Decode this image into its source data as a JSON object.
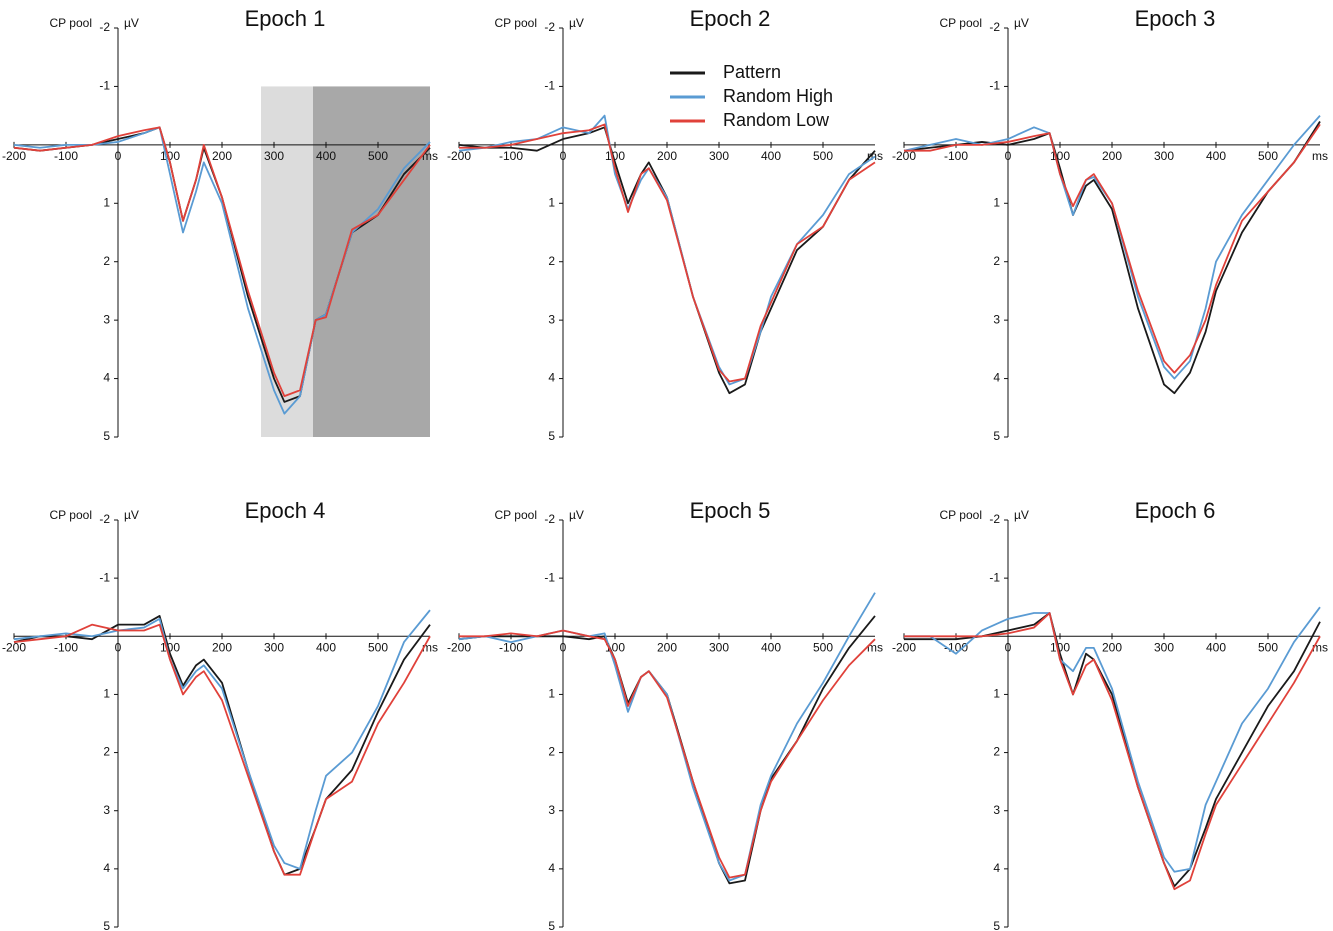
{
  "chart_data": [
    {
      "type": "line",
      "title": "Epoch 1",
      "y_label": "CP pool",
      "y_unit": "µV",
      "x_unit": "ms",
      "x": [
        -200,
        -150,
        -100,
        -50,
        0,
        50,
        80,
        100,
        125,
        150,
        165,
        200,
        250,
        300,
        320,
        350,
        380,
        400,
        450,
        500,
        550,
        600
      ],
      "xlim": [
        -200,
        600
      ],
      "ylim": [
        5,
        -2
      ],
      "xticks": [
        -200,
        -100,
        0,
        100,
        200,
        300,
        400,
        500
      ],
      "yticks": [
        -2,
        -1,
        1,
        2,
        3,
        4,
        5
      ],
      "shaded_regions": [
        {
          "xlim": [
            275,
            375
          ],
          "ylim": [
            -1,
            5
          ],
          "color": "#dcdcdc"
        },
        {
          "xlim": [
            375,
            600
          ],
          "ylim": [
            -1,
            5
          ],
          "color": "#a8a8a8"
        }
      ],
      "series": [
        {
          "color": "#1a1a1a",
          "values": [
            0.05,
            0.1,
            0.05,
            0.0,
            -0.1,
            -0.2,
            -0.3,
            0.3,
            1.3,
            0.6,
            0.05,
            0.9,
            2.6,
            4.0,
            4.4,
            4.3,
            3.0,
            2.9,
            1.5,
            1.2,
            0.5,
            0.05
          ]
        },
        {
          "color": "#5a9bd3",
          "values": [
            0.0,
            0.05,
            0.0,
            0.0,
            -0.05,
            -0.2,
            -0.3,
            0.5,
            1.5,
            0.8,
            0.3,
            1.0,
            2.8,
            4.2,
            4.6,
            4.3,
            3.0,
            2.9,
            1.5,
            1.1,
            0.4,
            -0.05
          ]
        },
        {
          "color": "#e0413a",
          "values": [
            0.05,
            0.1,
            0.05,
            0.0,
            -0.15,
            -0.25,
            -0.3,
            0.3,
            1.3,
            0.6,
            0.0,
            0.9,
            2.5,
            3.9,
            4.3,
            4.2,
            3.0,
            2.95,
            1.45,
            1.2,
            0.6,
            0.0
          ]
        }
      ]
    },
    {
      "type": "line",
      "title": "Epoch 2",
      "y_label": "CP pool",
      "y_unit": "µV",
      "x_unit": "ms",
      "x": [
        -200,
        -150,
        -100,
        -50,
        0,
        50,
        80,
        100,
        125,
        150,
        165,
        200,
        250,
        300,
        320,
        350,
        380,
        400,
        450,
        500,
        550,
        600
      ],
      "xlim": [
        -200,
        600
      ],
      "ylim": [
        5,
        -2
      ],
      "xticks": [
        -200,
        -100,
        0,
        100,
        200,
        300,
        400,
        500
      ],
      "yticks": [
        -2,
        -1,
        1,
        2,
        3,
        4,
        5
      ],
      "series": [
        {
          "name": "Pattern",
          "color": "#1a1a1a",
          "values": [
            0.0,
            0.05,
            0.05,
            0.1,
            -0.1,
            -0.2,
            -0.3,
            0.3,
            1.0,
            0.5,
            0.3,
            0.9,
            2.6,
            3.9,
            4.25,
            4.1,
            3.2,
            2.8,
            1.8,
            1.4,
            0.6,
            0.1
          ]
        },
        {
          "name": "Random High",
          "color": "#5a9bd3",
          "values": [
            0.1,
            0.05,
            -0.05,
            -0.1,
            -0.3,
            -0.2,
            -0.5,
            0.5,
            1.1,
            0.6,
            0.4,
            0.9,
            2.6,
            3.8,
            4.1,
            4.0,
            3.2,
            2.6,
            1.7,
            1.2,
            0.5,
            0.2
          ]
        },
        {
          "name": "Random Low",
          "color": "#e0413a",
          "values": [
            0.05,
            0.05,
            0.0,
            -0.1,
            -0.2,
            -0.25,
            -0.35,
            0.4,
            1.15,
            0.5,
            0.4,
            0.95,
            2.6,
            3.85,
            4.05,
            4.0,
            3.1,
            2.7,
            1.7,
            1.4,
            0.6,
            0.3
          ]
        }
      ]
    },
    {
      "type": "line",
      "title": "Epoch 3",
      "y_label": "CP pool",
      "y_unit": "µV",
      "x_unit": "ms",
      "x": [
        -200,
        -150,
        -100,
        -50,
        0,
        50,
        80,
        100,
        125,
        150,
        165,
        200,
        250,
        300,
        320,
        350,
        380,
        400,
        450,
        500,
        550,
        600
      ],
      "xlim": [
        -200,
        600
      ],
      "ylim": [
        5,
        -2
      ],
      "xticks": [
        -200,
        -100,
        0,
        100,
        200,
        300,
        400,
        500
      ],
      "yticks": [
        -2,
        -1,
        1,
        2,
        3,
        4,
        5
      ],
      "series": [
        {
          "color": "#1a1a1a",
          "values": [
            0.1,
            0.05,
            0.0,
            -0.05,
            0.0,
            -0.1,
            -0.2,
            0.4,
            1.2,
            0.7,
            0.6,
            1.1,
            2.8,
            4.1,
            4.25,
            3.9,
            3.2,
            2.5,
            1.5,
            0.8,
            0.3,
            -0.4
          ]
        },
        {
          "color": "#5a9bd3",
          "values": [
            0.1,
            0.0,
            -0.1,
            0.0,
            -0.1,
            -0.3,
            -0.2,
            0.5,
            1.2,
            0.6,
            0.55,
            1.0,
            2.6,
            3.8,
            4.0,
            3.7,
            2.8,
            2.0,
            1.2,
            0.6,
            0.0,
            -0.5
          ]
        },
        {
          "color": "#e0413a",
          "values": [
            0.1,
            0.1,
            0.0,
            0.0,
            -0.05,
            -0.15,
            -0.2,
            0.5,
            1.05,
            0.6,
            0.5,
            1.0,
            2.5,
            3.7,
            3.9,
            3.6,
            3.0,
            2.4,
            1.3,
            0.8,
            0.3,
            -0.35
          ]
        }
      ]
    },
    {
      "type": "line",
      "title": "Epoch 4",
      "y_label": "CP pool",
      "y_unit": "µV",
      "x_unit": "ms",
      "x": [
        -200,
        -150,
        -100,
        -50,
        0,
        50,
        80,
        100,
        125,
        150,
        165,
        200,
        250,
        300,
        320,
        350,
        380,
        400,
        450,
        500,
        550,
        600
      ],
      "xlim": [
        -200,
        600
      ],
      "ylim": [
        5,
        -2
      ],
      "xticks": [
        -200,
        -100,
        0,
        100,
        200,
        300,
        400,
        500
      ],
      "yticks": [
        -2,
        -1,
        1,
        2,
        3,
        4,
        5
      ],
      "series": [
        {
          "color": "#1a1a1a",
          "values": [
            0.1,
            0.0,
            0.0,
            0.05,
            -0.2,
            -0.2,
            -0.35,
            0.3,
            0.85,
            0.5,
            0.4,
            0.8,
            2.3,
            3.7,
            4.1,
            4.0,
            3.3,
            2.8,
            2.3,
            1.3,
            0.4,
            -0.2
          ]
        },
        {
          "color": "#5a9bd3",
          "values": [
            0.05,
            0.0,
            -0.05,
            0.0,
            -0.1,
            -0.15,
            -0.3,
            0.4,
            0.9,
            0.6,
            0.5,
            0.9,
            2.3,
            3.6,
            3.9,
            4.0,
            3.0,
            2.4,
            2.0,
            1.2,
            0.1,
            -0.45
          ]
        },
        {
          "color": "#e0413a",
          "values": [
            0.1,
            0.05,
            0.0,
            -0.2,
            -0.1,
            -0.1,
            -0.2,
            0.4,
            1.0,
            0.7,
            0.6,
            1.1,
            2.4,
            3.7,
            4.1,
            4.1,
            3.3,
            2.8,
            2.5,
            1.5,
            0.8,
            0.0
          ]
        }
      ]
    },
    {
      "type": "line",
      "title": "Epoch 5",
      "y_label": "CP pool",
      "y_unit": "µV",
      "x_unit": "ms",
      "x": [
        -200,
        -150,
        -100,
        -50,
        0,
        50,
        80,
        100,
        125,
        150,
        165,
        200,
        250,
        300,
        320,
        350,
        380,
        400,
        450,
        500,
        550,
        600
      ],
      "xlim": [
        -200,
        600
      ],
      "ylim": [
        5,
        -2
      ],
      "xticks": [
        -200,
        -100,
        0,
        100,
        200,
        300,
        400,
        500
      ],
      "yticks": [
        -2,
        -1,
        1,
        2,
        3,
        4,
        5
      ],
      "series": [
        {
          "color": "#1a1a1a",
          "values": [
            0.05,
            0.0,
            0.0,
            0.0,
            0.0,
            0.05,
            0.0,
            0.4,
            1.15,
            0.7,
            0.6,
            1.0,
            2.5,
            3.9,
            4.25,
            4.2,
            3.0,
            2.45,
            1.8,
            0.9,
            0.2,
            -0.35
          ]
        },
        {
          "color": "#5a9bd3",
          "values": [
            0.05,
            0.0,
            0.1,
            0.0,
            -0.1,
            0.0,
            -0.05,
            0.5,
            1.3,
            0.7,
            0.6,
            1.0,
            2.6,
            3.9,
            4.2,
            4.1,
            2.9,
            2.4,
            1.5,
            0.8,
            0.0,
            -0.75
          ]
        },
        {
          "color": "#e0413a",
          "values": [
            0.0,
            0.0,
            -0.05,
            0.0,
            -0.1,
            0.0,
            0.05,
            0.4,
            1.2,
            0.7,
            0.6,
            1.05,
            2.5,
            3.8,
            4.15,
            4.1,
            3.0,
            2.5,
            1.8,
            1.1,
            0.5,
            0.05
          ]
        }
      ]
    },
    {
      "type": "line",
      "title": "Epoch 6",
      "y_label": "CP pool",
      "y_unit": "µV",
      "x_unit": "ms",
      "x": [
        -200,
        -150,
        -100,
        -50,
        0,
        50,
        80,
        100,
        125,
        150,
        165,
        200,
        250,
        300,
        320,
        350,
        380,
        400,
        450,
        500,
        550,
        600
      ],
      "xlim": [
        -200,
        600
      ],
      "ylim": [
        5,
        -2
      ],
      "xticks": [
        -200,
        -100,
        0,
        100,
        200,
        300,
        400,
        500
      ],
      "yticks": [
        -2,
        -1,
        1,
        2,
        3,
        4,
        5
      ],
      "series": [
        {
          "color": "#1a1a1a",
          "values": [
            0.05,
            0.05,
            0.05,
            0.0,
            -0.1,
            -0.2,
            -0.4,
            0.3,
            1.0,
            0.3,
            0.4,
            1.0,
            2.6,
            3.9,
            4.3,
            4.0,
            3.3,
            2.8,
            2.0,
            1.2,
            0.6,
            -0.25
          ]
        },
        {
          "color": "#5a9bd3",
          "values": [
            0.0,
            0.0,
            0.3,
            -0.1,
            -0.3,
            -0.4,
            -0.4,
            0.4,
            0.6,
            0.2,
            0.2,
            0.9,
            2.5,
            3.8,
            4.05,
            4.0,
            2.9,
            2.5,
            1.5,
            0.9,
            0.1,
            -0.5
          ]
        },
        {
          "color": "#e0413a",
          "values": [
            0.0,
            0.0,
            0.0,
            0.0,
            -0.05,
            -0.15,
            -0.4,
            0.4,
            1.0,
            0.5,
            0.4,
            1.1,
            2.6,
            3.9,
            4.35,
            4.2,
            3.4,
            2.9,
            2.2,
            1.5,
            0.8,
            0.0
          ]
        }
      ]
    }
  ]
}
